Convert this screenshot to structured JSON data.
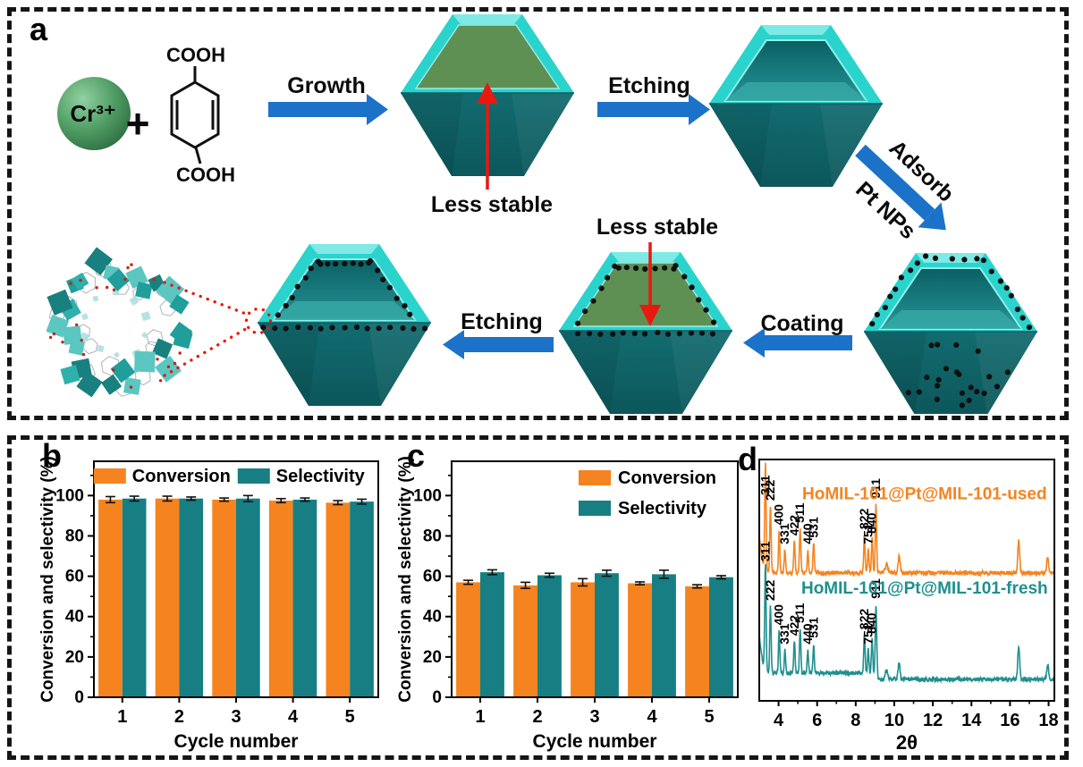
{
  "colors": {
    "orange": "#F5831F",
    "teal": "#177F83",
    "xrd_teal": "#1F8F8F",
    "arrow_blue": "#1C72C9",
    "red": "#E8190F",
    "crystal_cyan": "#2BD3CD",
    "crystal_cyan_light": "#7FEAE5",
    "crystal_dark_teal": "#157377",
    "crystal_green": "#5E9054",
    "sphere_green": "#4F9C63"
  },
  "panel_a": {
    "label": "a",
    "reactant_ion": "Cr³⁺",
    "plus_sign": "+",
    "linker_top_group": "COOH",
    "linker_bottom_group": "COOH",
    "step_growth": "Growth",
    "step_etching_top": "Etching",
    "step_adsorb_line1": "Adsorb",
    "step_adsorb_line2": "Pt NPs",
    "step_coating": "Coating",
    "step_etching_bottom": "Etching",
    "annotation_top": "Less stable",
    "annotation_bottom": "Less stable"
  },
  "panel_b": {
    "label": "b"
  },
  "panel_c": {
    "label": "c"
  },
  "panel_d": {
    "label": "d"
  },
  "chart_data": [
    {
      "id": "b",
      "type": "bar",
      "categories": [
        "1",
        "2",
        "3",
        "4",
        "5"
      ],
      "series": [
        {
          "name": "Conversion",
          "color": "#F5831F",
          "values": [
            98,
            98.5,
            98,
            97.5,
            96.5
          ],
          "errors": [
            1.5,
            1.2,
            0.8,
            1.0,
            1.0
          ]
        },
        {
          "name": "Selectivity",
          "color": "#177F83",
          "values": [
            98.5,
            98.5,
            98.5,
            98,
            97
          ],
          "errors": [
            1.2,
            0.8,
            1.5,
            0.8,
            1.2
          ]
        }
      ],
      "xlabel": "Cycle number",
      "ylabel": "Conversion and selectivity (%)",
      "yticks": [
        0,
        20,
        40,
        60,
        80,
        100
      ],
      "ylim": [
        0,
        117
      ],
      "grid": false,
      "legend": {
        "layout": "horizontal",
        "position": "top-center"
      }
    },
    {
      "id": "c",
      "type": "bar",
      "categories": [
        "1",
        "2",
        "3",
        "4",
        "5"
      ],
      "series": [
        {
          "name": "Conversion",
          "color": "#F5831F",
          "values": [
            57,
            55.5,
            57,
            56.5,
            55
          ],
          "errors": [
            1.0,
            1.5,
            1.8,
            0.7,
            0.8
          ]
        },
        {
          "name": "Selectivity",
          "color": "#177F83",
          "values": [
            62,
            60.5,
            61.5,
            61,
            59.5
          ],
          "errors": [
            1.2,
            1.0,
            1.5,
            2.0,
            0.8
          ]
        }
      ],
      "xlabel": "Cycle number",
      "ylabel": "Conversion and selectivity (%)",
      "yticks": [
        0,
        20,
        40,
        60,
        80,
        100
      ],
      "ylim": [
        0,
        117
      ],
      "grid": false,
      "legend": {
        "layout": "vertical",
        "position": "top-right"
      }
    },
    {
      "id": "d",
      "type": "line",
      "subtype": "xrd-pattern",
      "xlabel": "2θ",
      "xlim": [
        3,
        18.3
      ],
      "xticks": [
        4,
        6,
        8,
        10,
        12,
        14,
        16,
        18
      ],
      "traces": [
        {
          "name": "HoMIL-101@Pt@MIL-101-used",
          "color": "#F5831F"
        },
        {
          "name": "HoMIL-101@Pt@MIL-101-fresh",
          "color": "#1F8F8F"
        }
      ],
      "peak_labels": [
        {
          "hkl": "311",
          "two_theta": 3.32,
          "rel_intensity": 1.0
        },
        {
          "hkl": "222",
          "two_theta": 3.58,
          "rel_intensity": 0.63
        },
        {
          "hkl": "400",
          "two_theta": 4.03,
          "rel_intensity": 0.4
        },
        {
          "hkl": "331",
          "two_theta": 4.33,
          "rel_intensity": 0.22
        },
        {
          "hkl": "422",
          "two_theta": 4.82,
          "rel_intensity": 0.3
        },
        {
          "hkl": "511",
          "two_theta": 5.12,
          "rel_intensity": 0.42
        },
        {
          "hkl": "440",
          "two_theta": 5.52,
          "rel_intensity": 0.22
        },
        {
          "hkl": "531",
          "two_theta": 5.82,
          "rel_intensity": 0.28
        },
        {
          "hkl": "822",
          "two_theta": 8.45,
          "rel_intensity": 0.36
        },
        {
          "hkl": "751",
          "two_theta": 8.65,
          "rel_intensity": 0.22
        },
        {
          "hkl": "840",
          "two_theta": 8.85,
          "rel_intensity": 0.32
        },
        {
          "hkl": "911",
          "two_theta": 9.05,
          "rel_intensity": 0.65
        }
      ],
      "minor_features": [
        {
          "two_theta": 10.25,
          "rel_intensity": 0.16
        },
        {
          "two_theta": 16.45,
          "rel_intensity": 0.3
        },
        {
          "two_theta": 17.95,
          "rel_intensity": 0.14
        }
      ]
    }
  ]
}
